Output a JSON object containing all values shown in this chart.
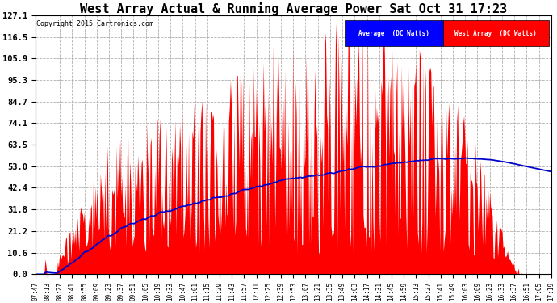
{
  "title": "West Array Actual & Running Average Power Sat Oct 31 17:23",
  "copyright": "Copyright 2015 Cartronics.com",
  "legend_avg": "Average  (DC Watts)",
  "legend_west": "West Array  (DC Watts)",
  "yticks": [
    0.0,
    10.6,
    21.2,
    31.8,
    42.4,
    53.0,
    63.5,
    74.1,
    84.7,
    95.3,
    105.9,
    116.5,
    127.1
  ],
  "ymax": 127.1,
  "ymin": 0.0,
  "bg_color": "#ffffff",
  "plot_bg_color": "#ffffff",
  "grid_color": "#b0b0b0",
  "bar_color": "#ff0000",
  "line_color": "#0000cc",
  "title_fontsize": 11,
  "xtick_labels": [
    "07:47",
    "08:13",
    "08:27",
    "08:41",
    "08:55",
    "09:09",
    "09:23",
    "09:37",
    "09:51",
    "10:05",
    "10:19",
    "10:33",
    "10:47",
    "11:01",
    "11:15",
    "11:29",
    "11:43",
    "11:57",
    "12:11",
    "12:25",
    "12:39",
    "12:53",
    "13:07",
    "13:21",
    "13:35",
    "13:49",
    "14:03",
    "14:17",
    "14:31",
    "14:45",
    "14:59",
    "15:13",
    "15:27",
    "15:41",
    "15:49",
    "16:03",
    "16:09",
    "16:23",
    "16:33",
    "16:37",
    "16:51",
    "17:05",
    "17:19"
  ]
}
